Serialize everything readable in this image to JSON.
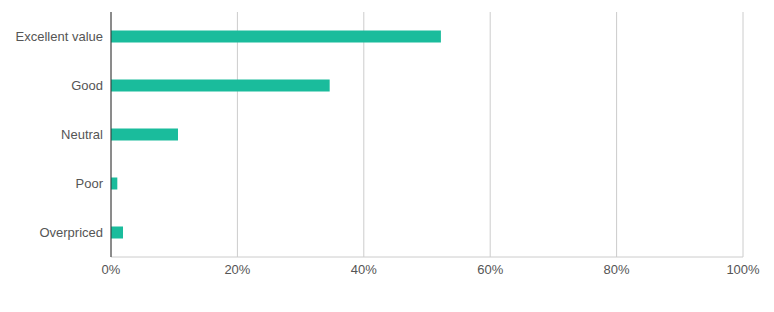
{
  "chart_data": {
    "type": "bar",
    "orientation": "horizontal",
    "categories": [
      "Excellent value",
      "Good",
      "Neutral",
      "Poor",
      "Overpriced"
    ],
    "values": [
      52.2,
      34.6,
      10.6,
      1.0,
      1.9
    ],
    "color": "#1abc9c",
    "xlim": [
      0,
      100
    ],
    "xticks": [
      {
        "value": 0,
        "label": "0%"
      },
      {
        "value": 20,
        "label": "20%"
      },
      {
        "value": 40,
        "label": "40%"
      },
      {
        "value": 60,
        "label": "60%"
      },
      {
        "value": 80,
        "label": "80%"
      },
      {
        "value": 100,
        "label": "100%"
      }
    ],
    "grid": true
  }
}
